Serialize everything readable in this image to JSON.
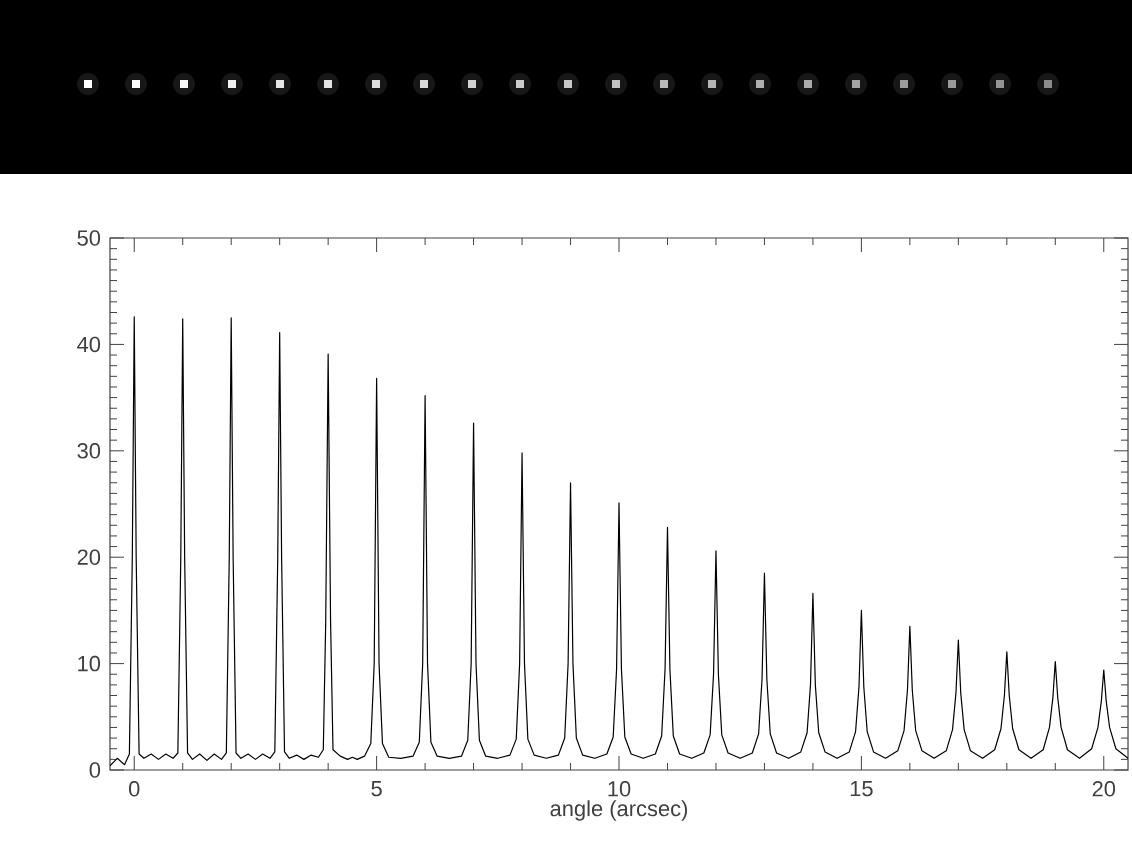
{
  "chart_data": {
    "type": "line",
    "xlabel": "angle (arcsec)",
    "color": "#000000",
    "line_style": "solid",
    "xlim": [
      -0.5,
      20.5
    ],
    "ylim": [
      0,
      50
    ],
    "xticks": [
      0,
      5,
      10,
      15,
      20
    ],
    "yticks": [
      0,
      10,
      20,
      30,
      40,
      50
    ],
    "x": [
      -0.5,
      -0.35,
      -0.2,
      -0.1,
      -0.04,
      0,
      0.04,
      0.1,
      0.2,
      0.35,
      0.5,
      0.65,
      0.8,
      0.9,
      0.96,
      1,
      1.04,
      1.1,
      1.2,
      1.35,
      1.5,
      1.65,
      1.8,
      1.9,
      1.96,
      2,
      2.04,
      2.1,
      2.2,
      2.35,
      2.5,
      2.65,
      2.8,
      2.9,
      2.96,
      3,
      3.04,
      3.1,
      3.2,
      3.35,
      3.5,
      3.65,
      3.8,
      3.9,
      3.95,
      4,
      4.05,
      4.1,
      4.25,
      4.4,
      4.5,
      4.6,
      4.75,
      4.88,
      4.95,
      5,
      5.05,
      5.12,
      5.25,
      5.5,
      5.75,
      5.88,
      5.95,
      6,
      6.05,
      6.12,
      6.25,
      6.5,
      6.75,
      6.88,
      6.95,
      7,
      7.05,
      7.12,
      7.25,
      7.5,
      7.75,
      7.88,
      7.95,
      8,
      8.05,
      8.12,
      8.25,
      8.5,
      8.75,
      8.88,
      8.95,
      9,
      9.05,
      9.12,
      9.25,
      9.5,
      9.75,
      9.88,
      9.95,
      10,
      10.05,
      10.12,
      10.25,
      10.5,
      10.75,
      10.88,
      10.95,
      11,
      11.05,
      11.12,
      11.25,
      11.5,
      11.75,
      11.88,
      11.95,
      12,
      12.05,
      12.12,
      12.25,
      12.5,
      12.75,
      12.88,
      12.95,
      13,
      13.05,
      13.12,
      13.25,
      13.5,
      13.75,
      13.88,
      13.95,
      14,
      14.05,
      14.12,
      14.25,
      14.5,
      14.75,
      14.88,
      14.95,
      15,
      15.05,
      15.12,
      15.25,
      15.5,
      15.75,
      15.88,
      15.95,
      16,
      16.05,
      16.12,
      16.25,
      16.5,
      16.75,
      16.88,
      16.95,
      17,
      17.05,
      17.12,
      17.25,
      17.5,
      17.75,
      17.88,
      17.95,
      18,
      18.05,
      18.12,
      18.25,
      18.5,
      18.75,
      18.88,
      18.95,
      19,
      19.05,
      19.12,
      19.25,
      19.5,
      19.75,
      19.88,
      19.95,
      20,
      20.05,
      20.12,
      20.25,
      20.5
    ],
    "values": [
      0.4,
      1.1,
      0.5,
      1.5,
      20,
      42.6,
      20,
      1.5,
      1.1,
      1.5,
      1.0,
      1.5,
      1.1,
      1.6,
      20,
      42.4,
      20,
      1.6,
      1.0,
      1.5,
      0.9,
      1.5,
      1.0,
      1.6,
      20,
      42.5,
      20,
      1.6,
      1.1,
      1.5,
      1.0,
      1.5,
      1.1,
      1.7,
      20,
      41.1,
      20,
      1.7,
      1.1,
      1.4,
      1.0,
      1.4,
      1.2,
      1.9,
      14,
      39.1,
      14,
      1.9,
      1.3,
      1.0,
      1.2,
      1.0,
      1.3,
      2.5,
      10,
      36.8,
      10,
      2.5,
      1.2,
      1.1,
      1.3,
      2.6,
      10,
      35.2,
      10,
      2.6,
      1.3,
      1.1,
      1.3,
      2.8,
      10,
      32.6,
      10,
      2.8,
      1.3,
      1.1,
      1.4,
      2.9,
      10,
      29.8,
      10,
      2.9,
      1.4,
      1.1,
      1.4,
      3.0,
      10,
      27.0,
      10,
      3.0,
      1.4,
      1.1,
      1.5,
      3.1,
      9.5,
      25.1,
      9.5,
      3.1,
      1.5,
      1.1,
      1.5,
      3.2,
      9.5,
      22.8,
      9.5,
      3.2,
      1.5,
      1.1,
      1.6,
      3.3,
      9,
      20.6,
      9,
      3.3,
      1.6,
      1.1,
      1.6,
      3.4,
      8.5,
      18.5,
      8.5,
      3.4,
      1.6,
      1.1,
      1.7,
      3.5,
      8,
      16.6,
      8,
      3.5,
      1.7,
      1.1,
      1.7,
      3.6,
      7.8,
      15.0,
      7.8,
      3.6,
      1.7,
      1.1,
      1.8,
      3.7,
      7.5,
      13.5,
      7.5,
      3.7,
      1.8,
      1.1,
      1.8,
      3.8,
      7.2,
      12.2,
      7.2,
      3.8,
      1.8,
      1.1,
      1.9,
      3.9,
      7,
      11.1,
      7,
      3.9,
      1.9,
      1.1,
      1.9,
      4.0,
      6.8,
      10.2,
      6.8,
      4.0,
      1.9,
      1.1,
      2.0,
      4.0,
      6.5,
      9.4,
      6.5,
      4.0,
      2.0,
      1.1
    ]
  }
}
